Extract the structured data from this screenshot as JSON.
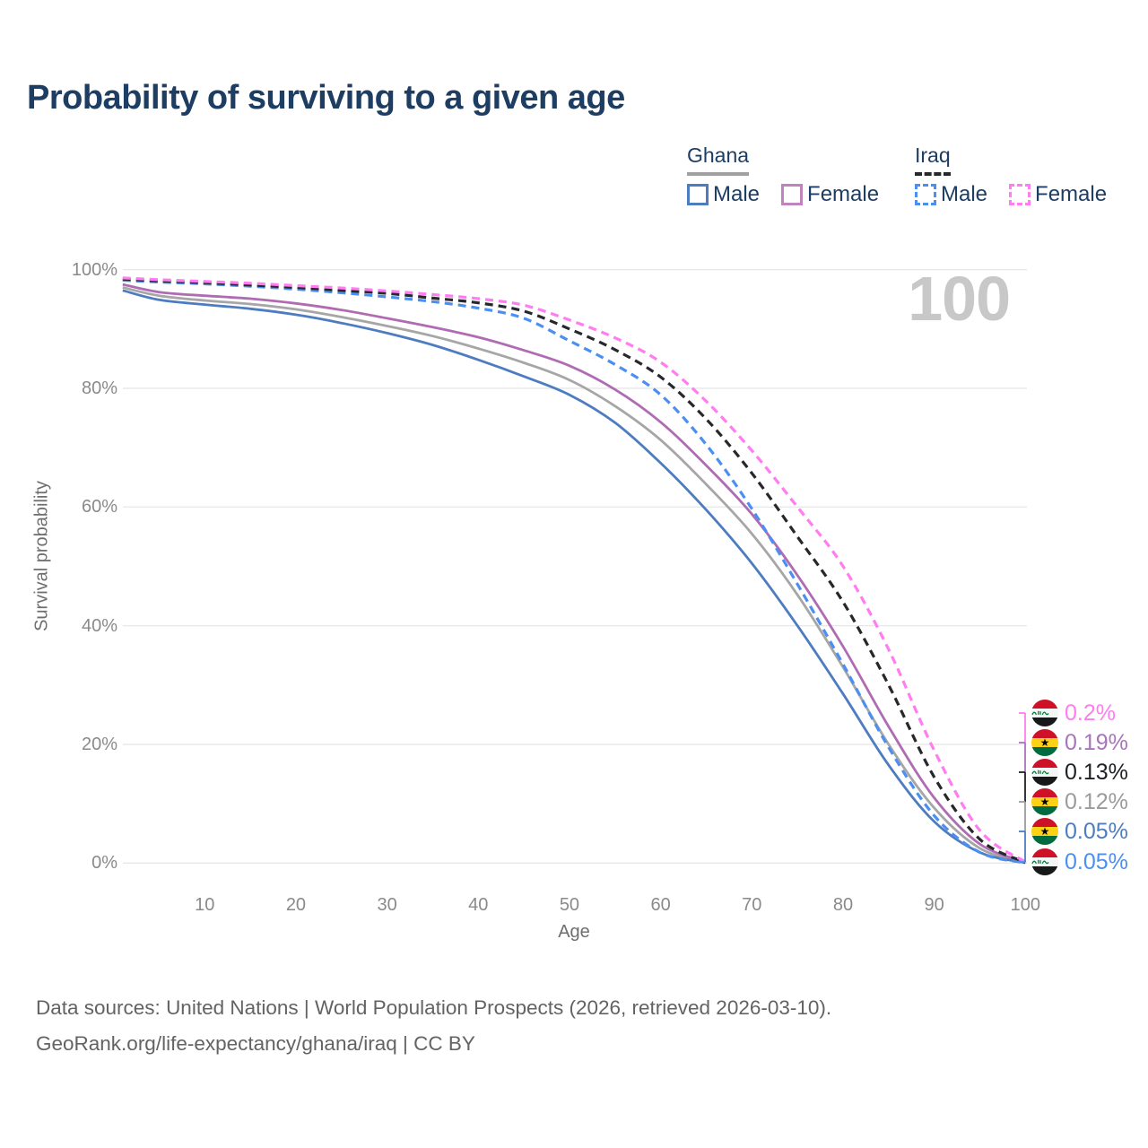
{
  "title": "Probability of surviving to a given age",
  "watermark": "100",
  "legend": {
    "groups": [
      {
        "name": "Ghana",
        "underline_style": "solid",
        "underline_color": "#a0a0a0",
        "items": [
          {
            "label": "Male",
            "color": "#4d7cc0",
            "dash": false
          },
          {
            "label": "Female",
            "color": "#c083bd",
            "dash": false
          }
        ]
      },
      {
        "name": "Iraq",
        "underline_style": "dashed",
        "underline_color": "#26282b",
        "items": [
          {
            "label": "Male",
            "color": "#4b8ff2",
            "dash": true
          },
          {
            "label": "Female",
            "color": "#ff7df1",
            "dash": true
          }
        ]
      }
    ]
  },
  "chart_data": {
    "type": "line",
    "title": "Probability of surviving to a given age",
    "xlabel": "Age",
    "ylabel": "Survival probability",
    "x": [
      1,
      5,
      10,
      15,
      20,
      25,
      30,
      35,
      40,
      45,
      50,
      55,
      60,
      65,
      70,
      75,
      80,
      85,
      90,
      95,
      100
    ],
    "xlim": [
      1,
      100
    ],
    "ylim": [
      0,
      100
    ],
    "xticks": [
      10,
      20,
      30,
      40,
      50,
      60,
      70,
      80,
      90,
      100
    ],
    "yticks": [
      0,
      20,
      40,
      60,
      80,
      100
    ],
    "ytick_labels": [
      "0%",
      "20%",
      "40%",
      "60%",
      "80%",
      "100%"
    ],
    "grid": true,
    "legend_position": "top-right",
    "series": [
      {
        "name": "Iraq Female",
        "country": "Iraq",
        "sex": "Female",
        "color": "#ff7df1",
        "dash": true,
        "end_value_label": "0.2%",
        "values": [
          98.6,
          98.3,
          98.0,
          97.7,
          97.3,
          96.9,
          96.4,
          95.8,
          95.1,
          94.0,
          91.5,
          88.5,
          84.4,
          77.8,
          69.5,
          60.0,
          50.0,
          36.0,
          19.0,
          5.5,
          0.2
        ]
      },
      {
        "name": "Iraq Both sexes",
        "country": "Iraq",
        "sex": "Both",
        "color": "#26282b",
        "dash": true,
        "end_value_label": "0.13%",
        "values": [
          98.4,
          98.1,
          97.8,
          97.4,
          97.0,
          96.5,
          96.0,
          95.2,
          94.4,
          93.0,
          90.0,
          86.5,
          81.9,
          74.8,
          65.7,
          55.0,
          44.0,
          30.0,
          14.5,
          4.0,
          0.13
        ]
      },
      {
        "name": "Iraq Male",
        "country": "Iraq",
        "sex": "Male",
        "color": "#4b8ff2",
        "dash": true,
        "end_value_label": "0.05%",
        "values": [
          98.2,
          97.9,
          97.6,
          97.2,
          96.7,
          96.1,
          95.4,
          94.6,
          93.5,
          91.8,
          88.0,
          84.0,
          78.9,
          70.5,
          59.7,
          47.0,
          33.5,
          19.5,
          8.0,
          1.8,
          0.05
        ]
      },
      {
        "name": "Ghana Female",
        "country": "Ghana",
        "sex": "Female",
        "color": "#b06cb3",
        "dash": false,
        "end_value_label": "0.19%",
        "values": [
          97.5,
          96.2,
          95.6,
          95.1,
          94.3,
          93.2,
          91.8,
          90.3,
          88.6,
          86.4,
          83.8,
          79.8,
          74.3,
          67.0,
          58.8,
          48.5,
          36.5,
          23.0,
          11.0,
          3.2,
          0.19
        ]
      },
      {
        "name": "Ghana Both sexes",
        "country": "Ghana",
        "sex": "Both",
        "color": "#a6a6a6",
        "dash": false,
        "end_value_label": "0.12%",
        "values": [
          97.0,
          95.6,
          94.8,
          94.2,
          93.3,
          92.0,
          90.5,
          88.8,
          86.7,
          84.3,
          81.4,
          77.0,
          71.3,
          63.8,
          55.5,
          45.2,
          33.0,
          20.0,
          9.3,
          2.5,
          0.12
        ]
      },
      {
        "name": "Ghana Male",
        "country": "Ghana",
        "sex": "Male",
        "color": "#4d7cc0",
        "dash": false,
        "end_value_label": "0.05%",
        "values": [
          96.5,
          94.9,
          94.1,
          93.4,
          92.4,
          91.0,
          89.3,
          87.3,
          84.8,
          82.0,
          78.9,
          74.2,
          67.4,
          59.5,
          50.5,
          40.0,
          28.5,
          16.5,
          7.0,
          1.8,
          0.05
        ]
      }
    ]
  },
  "end_labels": [
    {
      "flag": "iraq",
      "text": "0.2%",
      "color": "#ff7df1"
    },
    {
      "flag": "ghana",
      "text": "0.19%",
      "color": "#a874ba"
    },
    {
      "flag": "iraq",
      "text": "0.13%",
      "color": "#1d2025"
    },
    {
      "flag": "ghana",
      "text": "0.12%",
      "color": "#9b9b9b"
    },
    {
      "flag": "ghana",
      "text": "0.05%",
      "color": "#4d7cc0"
    },
    {
      "flag": "iraq",
      "text": "0.05%",
      "color": "#4b8ff2"
    }
  ],
  "flag_colors": {
    "ghana": {
      "top": "#ce1126",
      "middle": "#fcd116",
      "bottom": "#006b3f",
      "star": "#000000"
    },
    "iraq": {
      "top": "#ce1126",
      "middle": "#f5f5f5",
      "bottom": "#17181a",
      "script": "#007a3d"
    }
  },
  "footer": {
    "line1": "Data sources: United Nations | World Population Prospects (2026, retrieved 2026-03-10).",
    "line2": "GeoRank.org/life-expectancy/ghana/iraq | CC BY"
  }
}
